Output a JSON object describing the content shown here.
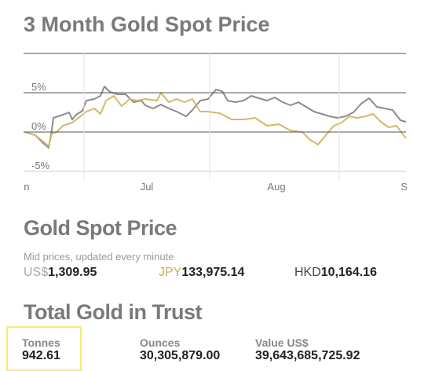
{
  "chart_data": {
    "type": "line",
    "title": "3 Month Gold Spot Price",
    "series": [
      {
        "color": "#8c8c8c",
        "x": [
          0,
          2.6,
          4.6,
          6,
          6.8,
          7.2,
          9.6,
          11.2,
          12,
          13,
          14.6,
          15.6,
          17.6,
          19.2,
          20.2,
          21.6,
          23.6,
          25.6,
          27.6,
          29.6,
          30.6,
          32.6,
          34.6,
          36.6,
          38.6,
          41,
          42.6,
          44.6,
          46.6,
          48.6,
          50.2,
          51.6,
          53.6,
          55.6,
          57.6,
          59.6,
          61.6,
          63.6,
          65.6,
          67.6,
          69.6,
          71.6,
          73.6,
          75.6,
          77.6,
          79.6,
          81.6,
          83.6,
          85.6,
          87.6,
          89.6,
          91.6,
          93.6,
          95.6,
          97
        ],
        "values": [
          0,
          -0.4,
          -1.4,
          -2.0,
          0.3,
          1.8,
          2.2,
          2.5,
          1.6,
          2.2,
          2.7,
          4.0,
          4.2,
          4.6,
          5.8,
          5.1,
          4.8,
          4.8,
          3.8,
          4.0,
          3.4,
          3.0,
          3.5,
          3.0,
          2.6,
          2.0,
          2.8,
          4.0,
          4.2,
          5.4,
          5.2,
          4.0,
          3.8,
          4.0,
          4.6,
          4.3,
          4.0,
          4.4,
          3.8,
          3.4,
          3.8,
          3.2,
          2.6,
          2.3,
          2.0,
          1.8,
          2.0,
          2.5,
          3.6,
          4.3,
          3.2,
          3.0,
          2.8,
          1.5,
          1.3
        ]
      },
      {
        "color": "#d4b86a",
        "x": [
          0,
          2.6,
          4.6,
          6,
          6.8,
          8,
          9.6,
          12,
          13.6,
          15.6,
          17.6,
          19.2,
          20.6,
          22.6,
          24.6,
          26.6,
          28.6,
          30.6,
          33.6,
          34.6,
          36.6,
          38.6,
          40.6,
          42.6,
          44.6,
          46.6,
          49.6,
          52.6,
          55.6,
          58.6,
          61.6,
          64.6,
          67.6,
          70.6,
          72.6,
          74.6,
          76.6,
          78.6,
          80.6,
          82.6,
          84.6,
          86.6,
          88.6,
          90.6,
          92.6,
          94.6,
          97
        ],
        "values": [
          0,
          -0.4,
          -1.2,
          -1.8,
          -0.2,
          0,
          0.8,
          1.2,
          1.8,
          2.6,
          3.0,
          2.3,
          4.0,
          4.6,
          3.3,
          4.2,
          4.0,
          4.2,
          4.0,
          5.0,
          3.8,
          4.2,
          3.8,
          4.2,
          2.6,
          2.6,
          2.4,
          1.6,
          1.6,
          1.8,
          0.8,
          1.0,
          0.2,
          0,
          -1.0,
          -1.6,
          -0.4,
          0.8,
          1.2,
          2.0,
          1.8,
          2.0,
          2.3,
          1.3,
          0.6,
          0.8,
          -0.8
        ]
      }
    ],
    "xlim": [
      0,
      97
    ],
    "xticks": [
      {
        "value": -1,
        "label": "Jun"
      },
      {
        "value": 31,
        "label": "Jul"
      },
      {
        "value": 64,
        "label": "Aug"
      },
      {
        "value": 98,
        "label": "Sep"
      }
    ],
    "xgrid": [
      15,
      47,
      80
    ],
    "ylim": [
      -5,
      10
    ],
    "yticks": [
      {
        "value": 5,
        "label": "5%"
      },
      {
        "value": 0,
        "label": "0%"
      },
      {
        "value": -5,
        "label": "-5%"
      }
    ],
    "grid": true
  },
  "spot_price": {
    "title": "Gold Spot Price",
    "note": "Mid prices, updated every minute",
    "quotes": [
      {
        "currency": "US$",
        "price": "1,309.95"
      },
      {
        "currency": "JPY",
        "price": "133,975.14"
      },
      {
        "currency": "HKD",
        "price": "10,164.16"
      }
    ]
  },
  "trust": {
    "title": "Total Gold in Trust",
    "figures": [
      {
        "label": "Tonnes",
        "value": "942.61"
      },
      {
        "label": "Ounces",
        "value": "30,305,879.00"
      },
      {
        "label": "Value US$",
        "value": "39,643,685,725.92"
      }
    ]
  }
}
